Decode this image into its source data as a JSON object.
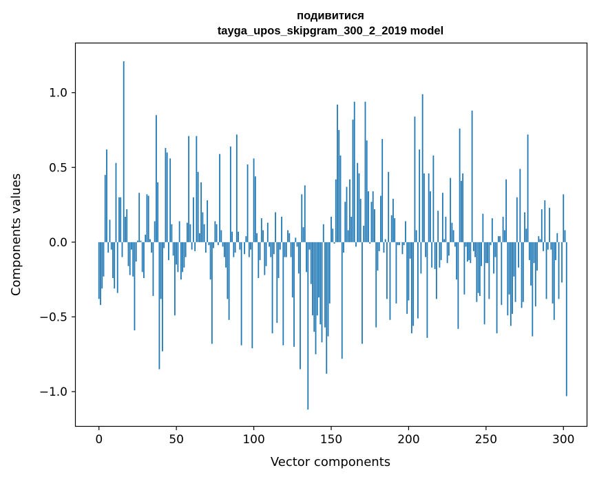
{
  "chart_data": {
    "type": "bar",
    "title": "подивитися",
    "subtitle": "tayga_upos_skipgram_300_2_2019 model",
    "xlabel": "Vector components",
    "ylabel": "Components values",
    "xlim": [
      -15,
      315
    ],
    "ylim": [
      -1.23,
      1.33
    ],
    "xticks": [
      0,
      50,
      100,
      150,
      200,
      250,
      300
    ],
    "yticks": [
      -1.0,
      -0.5,
      0.0,
      0.5,
      1.0
    ],
    "ytick_labels": [
      "−1.0",
      "−0.5",
      "0.0",
      "0.5",
      "1.0"
    ],
    "bar_color": "#1f77b4",
    "grid": false,
    "values": [
      -0.38,
      -0.42,
      -0.31,
      -0.23,
      0.45,
      0.62,
      -0.07,
      0.15,
      -0.05,
      -0.24,
      -0.31,
      0.53,
      -0.34,
      0.3,
      0.3,
      -0.1,
      1.21,
      0.17,
      0.22,
      -0.16,
      -0.22,
      -0.05,
      -0.23,
      -0.59,
      -0.13,
      0.01,
      0.33,
      0.01,
      -0.2,
      -0.24,
      0.05,
      0.32,
      0.31,
      0.02,
      -0.07,
      -0.36,
      0.14,
      0.85,
      0.4,
      -0.85,
      -0.38,
      -0.73,
      -0.04,
      0.63,
      0.6,
      -0.12,
      0.56,
      0.12,
      -0.09,
      -0.49,
      -0.15,
      -0.2,
      0.14,
      -0.25,
      -0.2,
      -0.17,
      -0.1,
      0.13,
      0.71,
      0.12,
      -0.05,
      0.3,
      -0.06,
      0.71,
      0.47,
      0.06,
      0.4,
      0.2,
      0.12,
      -0.07,
      0.28,
      -0.02,
      -0.25,
      -0.68,
      -0.04,
      0.14,
      0.12,
      -0.02,
      0.59,
      0.08,
      -0.03,
      -0.1,
      -0.17,
      -0.38,
      -0.52,
      0.64,
      0.07,
      -0.1,
      -0.07,
      0.72,
      0.07,
      -0.05,
      -0.69,
      0.0,
      -0.08,
      0.04,
      0.52,
      -0.1,
      -0.05,
      -0.71,
      0.56,
      0.44,
      0.06,
      -0.24,
      -0.12,
      0.16,
      0.08,
      -0.22,
      -0.16,
      0.13,
      -0.03,
      -0.1,
      -0.61,
      -0.08,
      0.2,
      -0.54,
      -0.24,
      -0.05,
      0.17,
      -0.69,
      -0.1,
      -0.1,
      0.08,
      0.06,
      -0.1,
      -0.37,
      -0.7,
      0.03,
      -0.03,
      -0.21,
      -0.85,
      0.32,
      0.1,
      0.38,
      -0.2,
      -1.12,
      -0.05,
      -0.28,
      -0.49,
      -0.6,
      -0.75,
      -0.49,
      -0.37,
      -0.55,
      -0.67,
      0.12,
      -0.57,
      -0.88,
      -0.63,
      -0.41,
      0.17,
      0.09,
      -0.01,
      0.42,
      0.92,
      0.75,
      0.58,
      -0.78,
      -0.07,
      0.27,
      0.37,
      0.08,
      0.42,
      0.17,
      0.82,
      0.94,
      -0.03,
      0.53,
      0.46,
      0.29,
      -0.68,
      0.11,
      0.94,
      0.68,
      0.34,
      -0.01,
      0.27,
      0.34,
      0.22,
      -0.57,
      -0.19,
      -0.06,
      0.31,
      0.69,
      -0.07,
      0.02,
      -0.38,
      0.47,
      -0.52,
      0.18,
      0.29,
      0.16,
      -0.41,
      -0.02,
      -0.02,
      0.0,
      -0.08,
      -0.02,
      0.14,
      -0.48,
      -0.39,
      -0.11,
      -0.61,
      -0.56,
      0.84,
      0.08,
      -0.51,
      0.62,
      -0.21,
      0.99,
      0.46,
      -0.1,
      -0.64,
      0.46,
      0.34,
      -0.17,
      0.58,
      -0.18,
      -0.38,
      0.21,
      -0.17,
      -0.12,
      0.33,
      0.02,
      0.17,
      -0.14,
      -0.09,
      0.43,
      0.13,
      0.08,
      -0.03,
      -0.25,
      -0.58,
      0.76,
      0.41,
      0.46,
      -0.35,
      -0.03,
      -0.13,
      -0.12,
      -0.14,
      0.88,
      -0.06,
      -0.1,
      -0.4,
      -0.34,
      -0.36,
      -0.16,
      0.19,
      -0.55,
      -0.14,
      -0.14,
      -0.38,
      -0.02,
      0.16,
      -0.21,
      -0.1,
      -0.61,
      0.04,
      0.04,
      -0.42,
      0.17,
      0.08,
      0.42,
      -0.49,
      -0.35,
      -0.56,
      -0.48,
      -0.23,
      -0.4,
      0.3,
      -0.17,
      0.49,
      -0.44,
      -0.4,
      0.2,
      0.09,
      0.72,
      -0.12,
      -0.29,
      -0.63,
      -0.14,
      -0.43,
      -0.19,
      0.04,
      0.02,
      0.22,
      -0.06,
      0.28,
      -0.38,
      -0.05,
      0.23,
      -0.05,
      -0.41,
      -0.52,
      -0.12,
      0.06,
      -0.38,
      0.0,
      -0.27,
      0.32,
      0.08,
      -1.03
    ]
  }
}
